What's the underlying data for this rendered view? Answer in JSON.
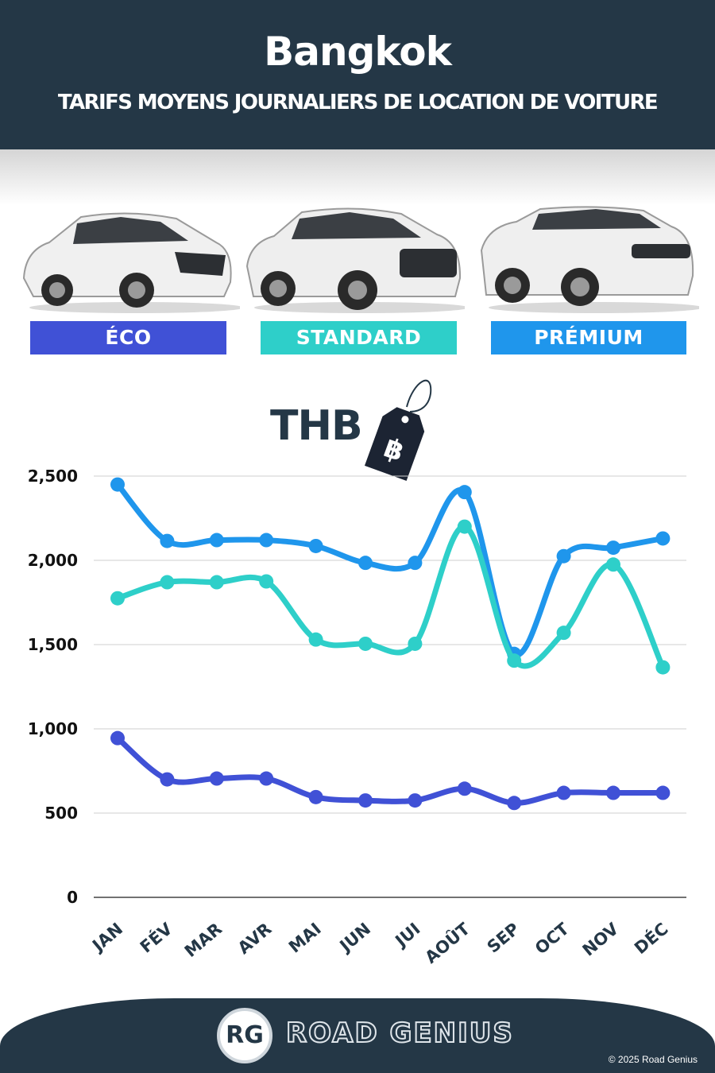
{
  "header": {
    "title": "Bangkok",
    "subtitle": "TARIFS MOYENS JOURNALIERS DE LOCATION DE VOITURE"
  },
  "categories": [
    {
      "label": "ÉCO",
      "color": "#4051d6"
    },
    {
      "label": "STANDARD",
      "color": "#2ecfc9"
    },
    {
      "label": "PRÉMIUM",
      "color": "#1f96ec"
    }
  ],
  "currency": {
    "label": "THB",
    "tag_symbol": "฿",
    "icon": "price-tag-icon"
  },
  "chart_data": {
    "type": "line",
    "categories": [
      "JAN",
      "FÉV",
      "MAR",
      "AVR",
      "MAI",
      "JUN",
      "JUI",
      "AOÛT",
      "SEP",
      "OCT",
      "NOV",
      "DÉC"
    ],
    "series": [
      {
        "name": "PRÉMIUM",
        "color": "#1f96ec",
        "values": [
          2450,
          2115,
          2120,
          2120,
          2085,
          1985,
          1985,
          2405,
          1445,
          2025,
          2075,
          2130
        ]
      },
      {
        "name": "STANDARD",
        "color": "#2ecfc9",
        "values": [
          1775,
          1870,
          1870,
          1875,
          1530,
          1505,
          1505,
          2200,
          1405,
          1570,
          1975,
          1365
        ]
      },
      {
        "name": "ÉCO",
        "color": "#4051d6",
        "values": [
          945,
          700,
          705,
          705,
          595,
          575,
          575,
          645,
          560,
          620,
          620,
          620
        ]
      }
    ],
    "yticks": [
      "0",
      "500",
      "1,000",
      "1,500",
      "2,000",
      "2,500"
    ],
    "ylim": [
      0,
      2500
    ],
    "grid": true
  },
  "footer": {
    "logo_text": "RG",
    "brand": "ROAD GENIUS",
    "copyright": "© 2025 Road Genius"
  }
}
